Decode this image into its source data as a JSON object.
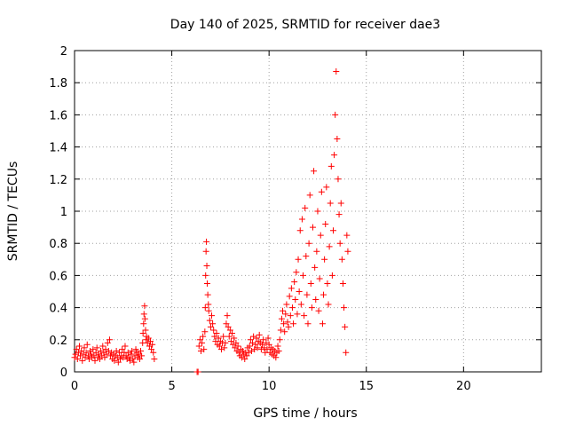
{
  "chart_data": {
    "type": "scatter",
    "title": "Day 140 of 2025, SRMTID for receiver dae3",
    "xlabel": "GPS time / hours",
    "ylabel": "SRMTID / TECUs",
    "xlim": [
      0,
      24
    ],
    "ylim": [
      0,
      2
    ],
    "grid": true,
    "marker": "+",
    "colors": {
      "series": "#ff0000",
      "grid": "#a0a0a0",
      "axis": "#000000"
    },
    "x_ticks": [
      {
        "value": 0,
        "label": "0"
      },
      {
        "value": 5,
        "label": "5"
      },
      {
        "value": 10,
        "label": "10"
      },
      {
        "value": 15,
        "label": "15"
      },
      {
        "value": 20,
        "label": "20"
      }
    ],
    "y_ticks": [
      {
        "value": 0,
        "label": "0"
      },
      {
        "value": 0.2,
        "label": "0.2"
      },
      {
        "value": 0.4,
        "label": "0.4"
      },
      {
        "value": 0.6,
        "label": "0.6"
      },
      {
        "value": 0.8,
        "label": "0.8"
      },
      {
        "value": 1.0,
        "label": "1"
      },
      {
        "value": 1.2,
        "label": "1.2"
      },
      {
        "value": 1.4,
        "label": "1.4"
      },
      {
        "value": 1.6,
        "label": "1.6"
      },
      {
        "value": 1.8,
        "label": "1.8"
      },
      {
        "value": 2.0,
        "label": "2"
      }
    ],
    "series": [
      {
        "name": "SRMTID",
        "points": [
          [
            0.0,
            0.09
          ],
          [
            0.05,
            0.11
          ],
          [
            0.1,
            0.14
          ],
          [
            0.15,
            0.08
          ],
          [
            0.2,
            0.12
          ],
          [
            0.25,
            0.16
          ],
          [
            0.3,
            0.1
          ],
          [
            0.35,
            0.13
          ],
          [
            0.4,
            0.07
          ],
          [
            0.45,
            0.11
          ],
          [
            0.5,
            0.15
          ],
          [
            0.55,
            0.09
          ],
          [
            0.6,
            0.12
          ],
          [
            0.65,
            0.17
          ],
          [
            0.7,
            0.1
          ],
          [
            0.75,
            0.08
          ],
          [
            0.8,
            0.13
          ],
          [
            0.85,
            0.11
          ],
          [
            0.9,
            0.09
          ],
          [
            0.95,
            0.14
          ],
          [
            1.0,
            0.1
          ],
          [
            1.05,
            0.07
          ],
          [
            1.1,
            0.12
          ],
          [
            1.15,
            0.15
          ],
          [
            1.2,
            0.09
          ],
          [
            1.25,
            0.11
          ],
          [
            1.3,
            0.08
          ],
          [
            1.35,
            0.13
          ],
          [
            1.4,
            0.1
          ],
          [
            1.45,
            0.16
          ],
          [
            1.5,
            0.12
          ],
          [
            1.55,
            0.09
          ],
          [
            1.6,
            0.14
          ],
          [
            1.65,
            0.11
          ],
          [
            1.7,
            0.18
          ],
          [
            1.75,
            0.13
          ],
          [
            1.8,
            0.2
          ],
          [
            1.85,
            0.1
          ],
          [
            1.9,
            0.12
          ],
          [
            1.95,
            0.08
          ],
          [
            2.0,
            0.11
          ],
          [
            2.05,
            0.07
          ],
          [
            2.1,
            0.1
          ],
          [
            2.15,
            0.13
          ],
          [
            2.2,
            0.09
          ],
          [
            2.25,
            0.06
          ],
          [
            2.3,
            0.12
          ],
          [
            2.35,
            0.08
          ],
          [
            2.4,
            0.1
          ],
          [
            2.45,
            0.14
          ],
          [
            2.5,
            0.09
          ],
          [
            2.55,
            0.12
          ],
          [
            2.6,
            0.16
          ],
          [
            2.65,
            0.1
          ],
          [
            2.7,
            0.08
          ],
          [
            2.75,
            0.12
          ],
          [
            2.8,
            0.09
          ],
          [
            2.85,
            0.07
          ],
          [
            2.9,
            0.11
          ],
          [
            2.95,
            0.13
          ],
          [
            3.0,
            0.08
          ],
          [
            3.05,
            0.06
          ],
          [
            3.1,
            0.1
          ],
          [
            3.15,
            0.14
          ],
          [
            3.2,
            0.12
          ],
          [
            3.25,
            0.09
          ],
          [
            3.3,
            0.11
          ],
          [
            3.35,
            0.08
          ],
          [
            3.4,
            0.13
          ],
          [
            3.45,
            0.1
          ],
          [
            3.5,
            0.18
          ],
          [
            3.52,
            0.24
          ],
          [
            3.55,
            0.3
          ],
          [
            3.57,
            0.36
          ],
          [
            3.6,
            0.41
          ],
          [
            3.62,
            0.33
          ],
          [
            3.65,
            0.26
          ],
          [
            3.68,
            0.2
          ],
          [
            3.7,
            0.22
          ],
          [
            3.75,
            0.18
          ],
          [
            3.8,
            0.21
          ],
          [
            3.85,
            0.16
          ],
          [
            3.9,
            0.19
          ],
          [
            3.95,
            0.14
          ],
          [
            4.0,
            0.17
          ],
          [
            4.05,
            0.12
          ],
          [
            4.1,
            0.08
          ],
          [
            6.3,
            0.0
          ],
          [
            6.35,
            0.0
          ],
          [
            6.4,
            0.16
          ],
          [
            6.45,
            0.2
          ],
          [
            6.5,
            0.13
          ],
          [
            6.55,
            0.18
          ],
          [
            6.6,
            0.22
          ],
          [
            6.65,
            0.14
          ],
          [
            6.7,
            0.25
          ],
          [
            6.72,
            0.4
          ],
          [
            6.74,
            0.6
          ],
          [
            6.76,
            0.75
          ],
          [
            6.78,
            0.81
          ],
          [
            6.8,
            0.66
          ],
          [
            6.82,
            0.55
          ],
          [
            6.85,
            0.48
          ],
          [
            6.88,
            0.42
          ],
          [
            6.9,
            0.38
          ],
          [
            6.95,
            0.32
          ],
          [
            7.0,
            0.28
          ],
          [
            7.05,
            0.35
          ],
          [
            7.1,
            0.3
          ],
          [
            7.15,
            0.26
          ],
          [
            7.2,
            0.22
          ],
          [
            7.25,
            0.19
          ],
          [
            7.3,
            0.24
          ],
          [
            7.35,
            0.17
          ],
          [
            7.4,
            0.21
          ],
          [
            7.45,
            0.16
          ],
          [
            7.5,
            0.19
          ],
          [
            7.55,
            0.14
          ],
          [
            7.6,
            0.18
          ],
          [
            7.65,
            0.22
          ],
          [
            7.7,
            0.15
          ],
          [
            7.75,
            0.18
          ],
          [
            7.8,
            0.3
          ],
          [
            7.85,
            0.35
          ],
          [
            7.9,
            0.28
          ],
          [
            7.95,
            0.22
          ],
          [
            8.0,
            0.26
          ],
          [
            8.05,
            0.19
          ],
          [
            8.1,
            0.24
          ],
          [
            8.15,
            0.17
          ],
          [
            8.2,
            0.21
          ],
          [
            8.25,
            0.15
          ],
          [
            8.3,
            0.18
          ],
          [
            8.35,
            0.13
          ],
          [
            8.4,
            0.16
          ],
          [
            8.45,
            0.12
          ],
          [
            8.5,
            0.1
          ],
          [
            8.55,
            0.14
          ],
          [
            8.6,
            0.09
          ],
          [
            8.65,
            0.13
          ],
          [
            8.7,
            0.11
          ],
          [
            8.75,
            0.08
          ],
          [
            8.8,
            0.12
          ],
          [
            8.85,
            0.1
          ],
          [
            8.9,
            0.15
          ],
          [
            8.95,
            0.12
          ],
          [
            9.0,
            0.16
          ],
          [
            9.05,
            0.2
          ],
          [
            9.1,
            0.13
          ],
          [
            9.15,
            0.18
          ],
          [
            9.2,
            0.22
          ],
          [
            9.25,
            0.14
          ],
          [
            9.3,
            0.17
          ],
          [
            9.35,
            0.21
          ],
          [
            9.4,
            0.15
          ],
          [
            9.45,
            0.19
          ],
          [
            9.5,
            0.23
          ],
          [
            9.55,
            0.18
          ],
          [
            9.6,
            0.14
          ],
          [
            9.65,
            0.17
          ],
          [
            9.7,
            0.2
          ],
          [
            9.75,
            0.15
          ],
          [
            9.8,
            0.12
          ],
          [
            9.85,
            0.18
          ],
          [
            9.9,
            0.14
          ],
          [
            9.95,
            0.21
          ],
          [
            10.0,
            0.17
          ],
          [
            10.05,
            0.12
          ],
          [
            10.1,
            0.15
          ],
          [
            10.15,
            0.11
          ],
          [
            10.2,
            0.14
          ],
          [
            10.25,
            0.1
          ],
          [
            10.3,
            0.13
          ],
          [
            10.35,
            0.09
          ],
          [
            10.4,
            0.12
          ],
          [
            10.45,
            0.16
          ],
          [
            10.5,
            0.13
          ],
          [
            10.55,
            0.2
          ],
          [
            10.6,
            0.26
          ],
          [
            10.65,
            0.33
          ],
          [
            10.7,
            0.38
          ],
          [
            10.75,
            0.3
          ],
          [
            10.8,
            0.25
          ],
          [
            10.85,
            0.36
          ],
          [
            10.9,
            0.42
          ],
          [
            10.95,
            0.31
          ],
          [
            11.0,
            0.28
          ],
          [
            11.05,
            0.47
          ],
          [
            11.1,
            0.35
          ],
          [
            11.15,
            0.52
          ],
          [
            11.2,
            0.4
          ],
          [
            11.25,
            0.3
          ],
          [
            11.3,
            0.56
          ],
          [
            11.35,
            0.45
          ],
          [
            11.4,
            0.62
          ],
          [
            11.45,
            0.36
          ],
          [
            11.5,
            0.7
          ],
          [
            11.55,
            0.5
          ],
          [
            11.6,
            0.88
          ],
          [
            11.65,
            0.42
          ],
          [
            11.7,
            0.95
          ],
          [
            11.75,
            0.6
          ],
          [
            11.8,
            0.35
          ],
          [
            11.85,
            1.02
          ],
          [
            11.9,
            0.72
          ],
          [
            11.95,
            0.48
          ],
          [
            12.0,
            0.3
          ],
          [
            12.05,
            0.8
          ],
          [
            12.1,
            1.1
          ],
          [
            12.15,
            0.55
          ],
          [
            12.2,
            0.4
          ],
          [
            12.25,
            0.9
          ],
          [
            12.3,
            1.25
          ],
          [
            12.35,
            0.65
          ],
          [
            12.4,
            0.45
          ],
          [
            12.45,
            0.75
          ],
          [
            12.5,
            1.0
          ],
          [
            12.55,
            0.38
          ],
          [
            12.6,
            0.58
          ],
          [
            12.65,
            0.85
          ],
          [
            12.7,
            1.12
          ],
          [
            12.75,
            0.3
          ],
          [
            12.8,
            0.48
          ],
          [
            12.85,
            0.7
          ],
          [
            12.9,
            0.92
          ],
          [
            12.95,
            1.15
          ],
          [
            13.0,
            0.55
          ],
          [
            13.05,
            0.42
          ],
          [
            13.1,
            0.78
          ],
          [
            13.15,
            1.05
          ],
          [
            13.2,
            1.28
          ],
          [
            13.25,
            0.6
          ],
          [
            13.3,
            0.88
          ],
          [
            13.35,
            1.35
          ],
          [
            13.4,
            1.6
          ],
          [
            13.45,
            1.87
          ],
          [
            13.5,
            1.45
          ],
          [
            13.55,
            1.2
          ],
          [
            13.6,
            0.98
          ],
          [
            13.65,
            0.8
          ],
          [
            13.7,
            1.05
          ],
          [
            13.75,
            0.7
          ],
          [
            13.8,
            0.55
          ],
          [
            13.85,
            0.4
          ],
          [
            13.9,
            0.28
          ],
          [
            13.95,
            0.12
          ],
          [
            14.0,
            0.85
          ],
          [
            14.05,
            0.75
          ]
        ]
      }
    ]
  }
}
